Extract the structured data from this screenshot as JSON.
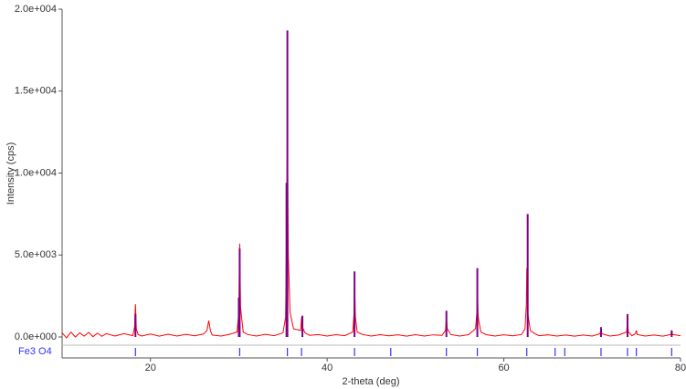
{
  "chart_data": {
    "type": "line",
    "x_label": "2-theta (deg)",
    "y_label": "Intensity (cps)",
    "xlim": [
      10,
      80
    ],
    "ylim": [
      -500,
      20000
    ],
    "xticks": [
      20,
      40,
      60,
      80
    ],
    "yticks": [
      {
        "value": 0,
        "label": "0.0e+000"
      },
      {
        "value": 5000,
        "label": "5.0e+003"
      },
      {
        "value": 10000,
        "label": "1.0e+004"
      },
      {
        "value": 15000,
        "label": "1.5e+004"
      },
      {
        "value": 20000,
        "label": "2.0e+004"
      }
    ],
    "series": [
      {
        "color": "#ff0000",
        "x": [
          10,
          10.5,
          11,
          11.5,
          12,
          12.5,
          13,
          13.5,
          14,
          14.5,
          15,
          16,
          17,
          18,
          18.2,
          18.3,
          18.4,
          18.6,
          19,
          20,
          21,
          22,
          23,
          24,
          25,
          26,
          26.4,
          26.6,
          26.8,
          27,
          28,
          29,
          29.8,
          30.0,
          30.1,
          30.2,
          30.5,
          31,
          32,
          33,
          34,
          35,
          35.3,
          35.4,
          35.5,
          35.6,
          35.8,
          36.2,
          37,
          37.1,
          37.2,
          37.5,
          38,
          39,
          40,
          41,
          42,
          42.9,
          43.05,
          43.1,
          43.2,
          43.4,
          44,
          45,
          46,
          47,
          48,
          49,
          50,
          51,
          52,
          53,
          53.4,
          53.5,
          53.6,
          54,
          55,
          56,
          56.8,
          56.95,
          57.0,
          57.1,
          57.4,
          58,
          59,
          60,
          61,
          62,
          62.4,
          62.55,
          62.6,
          62.7,
          63,
          63.5,
          64,
          65,
          66,
          67,
          68,
          69,
          70,
          70.9,
          71.0,
          71.1,
          72,
          73,
          73.9,
          74.0,
          74.1,
          74.5,
          74.9,
          75.0,
          75.1,
          76,
          77,
          78,
          78.9,
          79.0,
          79.1,
          80
        ],
        "values": [
          250,
          -50,
          300,
          0,
          250,
          50,
          280,
          20,
          230,
          40,
          200,
          60,
          200,
          80,
          600,
          2000,
          500,
          150,
          60,
          180,
          50,
          170,
          60,
          160,
          70,
          180,
          400,
          1000,
          350,
          120,
          60,
          170,
          300,
          1500,
          5700,
          1800,
          300,
          150,
          60,
          160,
          80,
          250,
          1200,
          6000,
          13000,
          5000,
          1500,
          500,
          400,
          1200,
          600,
          250,
          100,
          150,
          60,
          140,
          80,
          300,
          1500,
          3300,
          1200,
          300,
          150,
          60,
          140,
          70,
          130,
          50,
          140,
          60,
          130,
          100,
          400,
          1200,
          500,
          150,
          60,
          140,
          500,
          1500,
          3000,
          1200,
          300,
          140,
          60,
          130,
          70,
          150,
          500,
          2000,
          4200,
          1500,
          400,
          200,
          80,
          130,
          60,
          120,
          50,
          120,
          60,
          200,
          500,
          200,
          60,
          120,
          300,
          1000,
          300,
          80,
          200,
          400,
          150,
          60,
          120,
          50,
          150,
          400,
          150,
          80
        ]
      }
    ],
    "peaks": {
      "color": "#800080",
      "x": [
        18.3,
        30.0,
        30.1,
        35.4,
        35.5,
        37.2,
        43.1,
        53.5,
        57.0,
        62.7,
        71.0,
        74.0,
        79.0
      ],
      "values": [
        1400,
        2400,
        5400,
        9400,
        18700,
        1300,
        4000,
        1600,
        4200,
        7500,
        600,
        1400,
        400
      ]
    },
    "reference": {
      "name": "Fe3 O4",
      "color": "#3333ff",
      "x": [
        18.3,
        30.1,
        35.5,
        37.1,
        43.1,
        47.2,
        53.5,
        57.0,
        62.6,
        65.8,
        66.9,
        71.0,
        74.0,
        75.0,
        79.0
      ]
    }
  }
}
